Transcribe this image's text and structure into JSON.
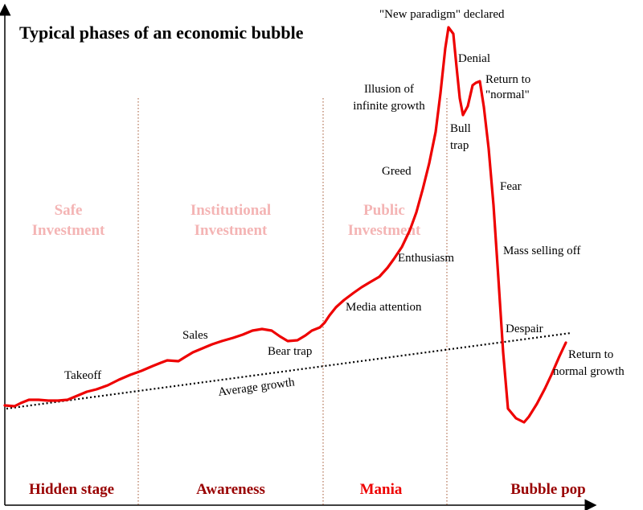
{
  "title": "Typical phases of an economic bubble",
  "colors": {
    "curve": "#ee0000",
    "region_text": "#f4b4b4",
    "stage_dark": "#990000",
    "stage_mania": "#ee0000",
    "divider": "#a0522d",
    "trend": "#000000"
  },
  "regions": [
    {
      "line1": "Safe",
      "line2": "Investment"
    },
    {
      "line1": "Institutional",
      "line2": "Investment"
    },
    {
      "line1": "Public",
      "line2": "Investment"
    }
  ],
  "stages": [
    "Hidden stage",
    "Awareness",
    "Mania",
    "Bubble pop"
  ],
  "trend_label": "Average growth",
  "annotations": {
    "takeoff": "Takeoff",
    "sales": "Sales",
    "bear_trap": "Bear trap",
    "media_attention": "Media attention",
    "enthusiasm": "Enthusiasm",
    "greed": "Greed",
    "illusion_1": "Illusion of",
    "illusion_2": "infinite growth",
    "new_paradigm": "\"New paradigm\" declared",
    "denial": "Denial",
    "return_normal_1": "Return to",
    "return_normal_2": "\"normal\"",
    "bull_trap_1": "Bull",
    "bull_trap_2": "trap",
    "fear": "Fear",
    "mass_selling": "Mass selling off",
    "despair": "Despair",
    "return_growth_1": "Return to",
    "return_growth_2": "normal growth"
  }
}
